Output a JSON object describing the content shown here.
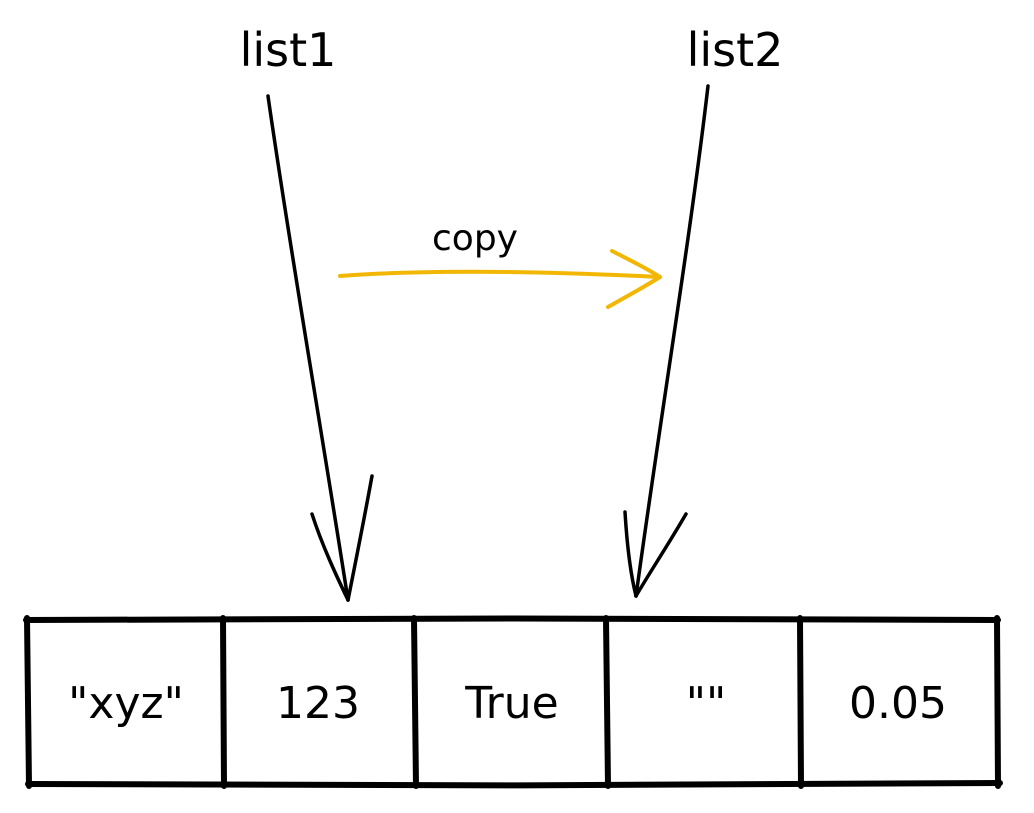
{
  "variables": {
    "left_label": "list1",
    "right_label": "list2"
  },
  "copy_arrow": {
    "label": "copy",
    "color": "#f2b705"
  },
  "list_cells": [
    "\"xyz\"",
    "123",
    "True",
    "\"\"",
    "0.05"
  ],
  "colors": {
    "ink": "#000000",
    "background": "#ffffff"
  }
}
